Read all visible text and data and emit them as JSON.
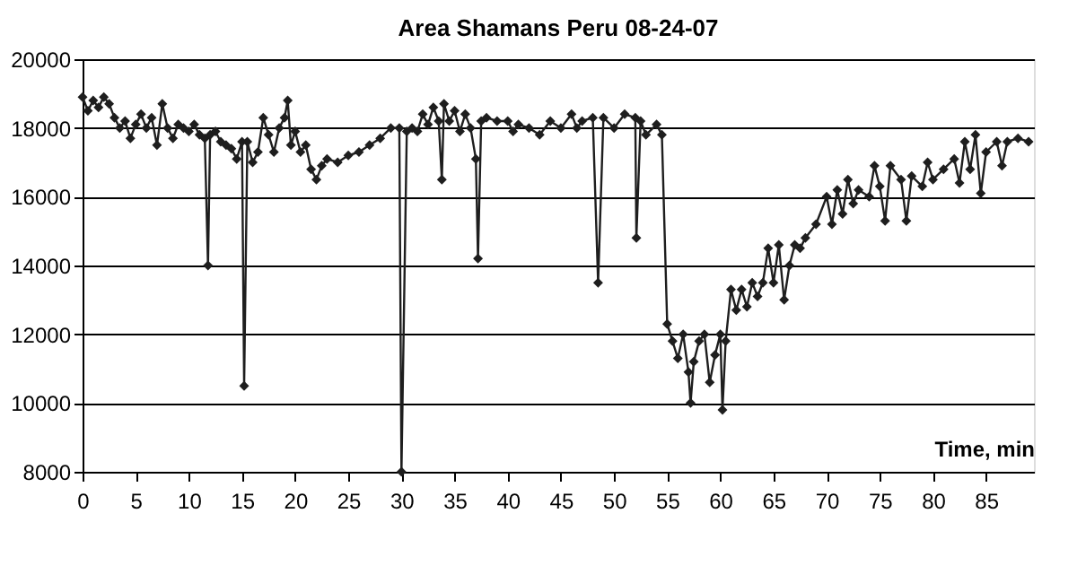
{
  "chart_data": {
    "type": "line",
    "title": "Area Shamans Peru 08-24-07",
    "xlabel": "Time, min",
    "x": [
      0,
      0.5,
      1,
      1.5,
      2,
      2.5,
      3,
      3.5,
      4,
      4.5,
      5,
      5.5,
      6,
      6.5,
      7,
      7.5,
      8,
      8.5,
      9,
      9.5,
      10,
      10.5,
      11,
      11.5,
      11.8,
      12,
      12.5,
      13,
      13.5,
      14,
      14.5,
      15,
      15.2,
      15.5,
      16,
      16.5,
      17,
      17.5,
      18,
      18.5,
      19,
      19.3,
      19.6,
      20,
      20.5,
      21,
      21.5,
      22,
      22.5,
      23,
      24,
      25,
      26,
      27,
      28,
      29,
      29.8,
      30,
      30.5,
      31,
      31.5,
      32,
      32.5,
      33,
      33.5,
      33.8,
      34,
      34.5,
      35,
      35.5,
      36,
      36.5,
      37,
      37.2,
      37.5,
      38,
      39,
      40,
      40.5,
      41,
      42,
      43,
      44,
      45,
      46,
      46.5,
      47,
      48,
      48.5,
      49,
      50,
      51,
      52,
      52.1,
      52.5,
      53,
      54,
      54.5,
      55,
      55.5,
      56,
      56.5,
      57,
      57.2,
      57.5,
      58,
      58.5,
      59,
      59.5,
      60,
      60.2,
      60.5,
      61,
      61.5,
      62,
      62.5,
      63,
      63.5,
      64,
      64.5,
      65,
      65.5,
      66,
      66.5,
      67,
      67.5,
      68,
      69,
      70,
      70.5,
      71,
      71.5,
      72,
      72.5,
      73,
      74,
      74.5,
      75,
      75.5,
      76,
      77,
      77.5,
      78,
      79,
      79.5,
      80,
      81,
      82,
      82.5,
      83,
      83.5,
      84,
      84.5,
      85,
      86,
      86.5,
      87,
      88,
      89
    ],
    "series": [
      {
        "color": "#1e1e1e",
        "values": [
          18900,
          18500,
          18800,
          18600,
          18900,
          18700,
          18300,
          18000,
          18200,
          17700,
          18100,
          18400,
          18000,
          18300,
          17500,
          18700,
          18000,
          17700,
          18100,
          18000,
          17900,
          18100,
          17800,
          17700,
          14000,
          17800,
          17900,
          17600,
          17500,
          17400,
          17100,
          17600,
          10500,
          17600,
          17000,
          17300,
          18300,
          17800,
          17300,
          18000,
          18300,
          18800,
          17500,
          17900,
          17300,
          17500,
          16800,
          16500,
          16900,
          17100,
          17000,
          17200,
          17300,
          17500,
          17700,
          18000,
          18000,
          8000,
          17900,
          18000,
          17900,
          18400,
          18100,
          18600,
          18200,
          16500,
          18700,
          18200,
          18500,
          17900,
          18400,
          18000,
          17100,
          14200,
          18200,
          18300,
          18200,
          18200,
          17900,
          18100,
          18000,
          17800,
          18200,
          18000,
          18400,
          18000,
          18200,
          18300,
          13500,
          18300,
          18000,
          18400,
          18300,
          14800,
          18200,
          17800,
          18100,
          17800,
          12300,
          11800,
          11300,
          12000,
          10900,
          10000,
          11200,
          11800,
          12000,
          10600,
          11400,
          12000,
          9800,
          11800,
          13300,
          12700,
          13300,
          12800,
          13500,
          13100,
          13500,
          14500,
          13500,
          14600,
          13000,
          14000,
          14600,
          14500,
          14800,
          15200,
          16000,
          15200,
          16200,
          15500,
          16500,
          15800,
          16200,
          16000,
          16900,
          16300,
          15300,
          16900,
          16500,
          15300,
          16600,
          16300,
          17000,
          16500,
          16800,
          17100,
          16400,
          17600,
          16800,
          17800,
          16100,
          17300,
          17600,
          16900,
          17600,
          17700,
          17600
        ]
      }
    ],
    "xlim": [
      0,
      89.5
    ],
    "xticks": [
      0,
      5,
      10,
      15,
      20,
      25,
      30,
      35,
      40,
      45,
      50,
      55,
      60,
      65,
      70,
      75,
      80,
      85
    ],
    "ylim": [
      8000,
      20000
    ],
    "yticks": [
      8000,
      10000,
      12000,
      14000,
      16000,
      18000,
      20000
    ],
    "grid": "y",
    "marker": "diamond",
    "line_style": "solid"
  }
}
